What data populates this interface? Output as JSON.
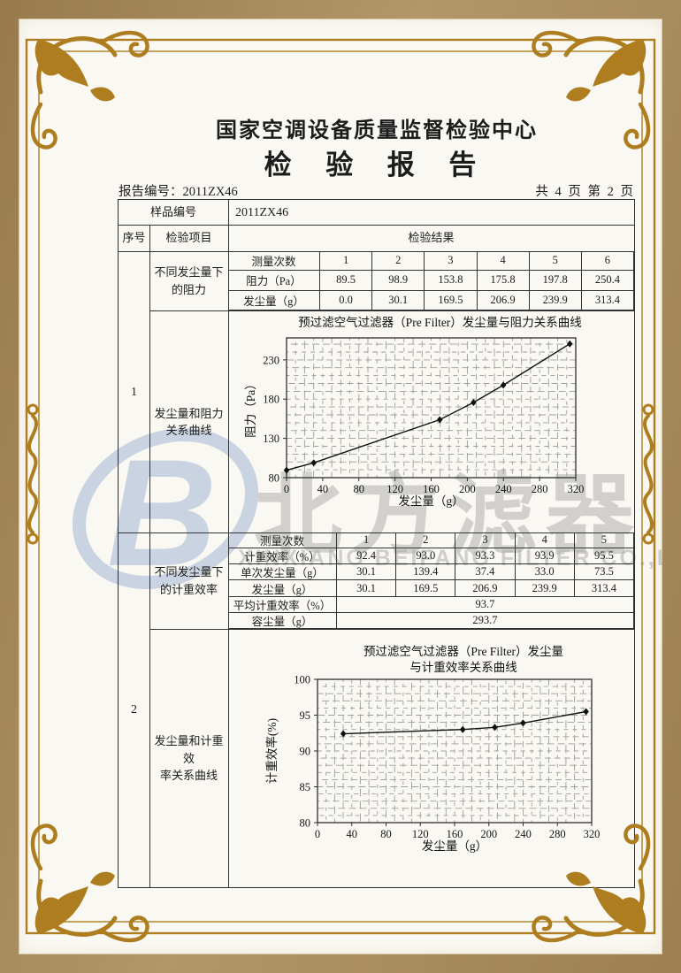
{
  "colors": {
    "frame_gold": "#ad7d1f",
    "band_tan": "#a98e60",
    "paper": "#faf8f2",
    "ink": "#1c1c1c",
    "watermark_blue": "#bdcade",
    "watermark_gray": "#aaaaaa"
  },
  "header": {
    "org_title": "国家空调设备质量监督检验中心",
    "doc_title": "检 验 报 告",
    "report_no": "报告编号：2011ZX46",
    "page_info": "共 4 页 第 2 页"
  },
  "table": {
    "sample_no_label": "样品编号",
    "sample_no_value": "2011ZX46",
    "header": {
      "seq": "序号",
      "item": "检验项目",
      "result": "检验结果"
    },
    "item1": {
      "seq": "1",
      "sub_item_lines": [
        "不同发尘量下",
        "的阻力"
      ],
      "chart_item_lines": [
        "发尘量和阻力",
        "关系曲线"
      ],
      "sub": {
        "rows": [
          {
            "label": "测量次数",
            "values": [
              "1",
              "2",
              "3",
              "4",
              "5",
              "6"
            ]
          },
          {
            "label": "阻力（Pa）",
            "values": [
              "89.5",
              "98.9",
              "153.8",
              "175.8",
              "197.8",
              "250.4"
            ]
          },
          {
            "label": "发尘量（g）",
            "values": [
              "0.0",
              "30.1",
              "169.5",
              "206.9",
              "239.9",
              "313.4"
            ]
          }
        ]
      }
    },
    "item2": {
      "seq": "2",
      "sub_item_lines": [
        "不同发尘量下",
        "的计重效率"
      ],
      "chart_item_lines": [
        "发尘量和计重效",
        "率关系曲线"
      ],
      "sub": {
        "rows": [
          {
            "label": "测量次数",
            "values": [
              "1",
              "2",
              "3",
              "4",
              "5"
            ]
          },
          {
            "label": "计重效率（%）",
            "values": [
              "92.4",
              "93.0",
              "93.3",
              "93.9",
              "95.5"
            ]
          },
          {
            "label": "单次发尘量（g）",
            "values": [
              "30.1",
              "139.4",
              "37.4",
              "33.0",
              "73.5"
            ]
          },
          {
            "label": "发尘量（g）",
            "values": [
              "30.1",
              "169.5",
              "206.9",
              "239.9",
              "313.4"
            ]
          },
          {
            "label": "平均计重效率（%）",
            "values": [
              "93.7"
            ],
            "span": true
          },
          {
            "label": "容尘量（g）",
            "values": [
              "293.7"
            ],
            "span": true
          }
        ]
      }
    }
  },
  "watermark": {
    "logo_letter": "B",
    "company_cn": "北方滤器",
    "company_en": "XINXIANG BEIFANG FILTER CO.,LTD."
  },
  "chart_data": [
    {
      "type": "line",
      "title": "预过滤空气过滤器（Pre Filter）发尘量与阻力关系曲线",
      "title_lines": [
        "预过滤空气过滤器（Pre Filter）发尘量与阻力关系曲线"
      ],
      "xlabel": "发尘量（g）",
      "ylabel": "阻力（Pa）",
      "x": [
        0,
        30.1,
        169.5,
        206.9,
        239.9,
        313.4
      ],
      "y": [
        89.5,
        98.9,
        153.8,
        175.8,
        197.8,
        250.4
      ],
      "xlim": [
        0,
        320
      ],
      "ylim": [
        80,
        258
      ],
      "xticks": [
        0,
        40,
        80,
        120,
        160,
        200,
        240,
        280,
        320
      ],
      "yticks": [
        80,
        130,
        180,
        230
      ],
      "xminor": 10,
      "yminor": 10,
      "marker": "diamond",
      "grid": "fine-dashed",
      "legend": null
    },
    {
      "type": "line",
      "title": "预过滤空气过滤器（Pre Filter）发尘量与计重效率关系曲线",
      "title_lines": [
        "预过滤空气过滤器（Pre Filter）发尘量",
        "与计重效率关系曲线"
      ],
      "xlabel": "发尘量（g）",
      "ylabel": "计重效率(%)",
      "x": [
        30.1,
        169.5,
        206.9,
        239.9,
        313.4
      ],
      "y": [
        92.4,
        93.0,
        93.3,
        93.9,
        95.5
      ],
      "xlim": [
        0,
        320
      ],
      "ylim": [
        80,
        100
      ],
      "xticks": [
        0,
        40,
        80,
        120,
        160,
        200,
        240,
        280,
        320
      ],
      "yticks": [
        80,
        85,
        90,
        95,
        100
      ],
      "xminor": 10,
      "yminor": 1,
      "marker": "diamond",
      "grid": "fine-dashed",
      "legend": null
    }
  ]
}
